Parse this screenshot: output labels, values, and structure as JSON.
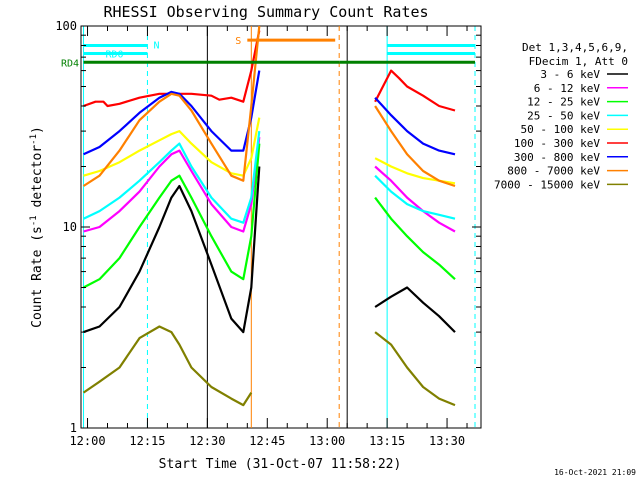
{
  "chart_data": {
    "type": "line",
    "title": "RHESSI Observing Summary Count Rates",
    "xlabel": "Start Time (31-Oct-07 11:58:22)",
    "ylabel": "Count Rate (s^-1 detector^-1)",
    "ylabel_parts": [
      "Count Rate (s",
      "-1",
      " detector",
      "-1",
      ")"
    ],
    "yscale": "log",
    "ylim": [
      1,
      100
    ],
    "xlim": [
      "11:58:22",
      "13:38:30"
    ],
    "x_ticks": [
      "12:00",
      "12:15",
      "12:30",
      "12:45",
      "13:00",
      "13:15",
      "13:30"
    ],
    "y_ticks": [
      "1",
      "10",
      "100"
    ],
    "legend_placement": "right",
    "legend_header": [
      "Det 1,3,4,5,6,9,",
      "FDecim 1, Att 0"
    ],
    "footer_date": "16-Oct-2021 21:09",
    "grid": false,
    "series": [
      {
        "name": "3 - 6 keV",
        "color": "#000000",
        "x": [
          "11:59",
          "12:03",
          "12:08",
          "12:13",
          "12:18",
          "12:21",
          "12:23",
          "12:26",
          "12:31",
          "12:36",
          "12:39",
          "12:41",
          "12:43",
          "13:12",
          "13:16",
          "13:20",
          "13:24",
          "13:28",
          "13:32"
        ],
        "y": [
          3.0,
          3.2,
          4.0,
          6.0,
          10.0,
          14.0,
          16.0,
          12.0,
          6.5,
          3.5,
          3.0,
          5.0,
          20.0,
          4.0,
          4.5,
          5.0,
          4.2,
          3.6,
          3.0
        ]
      },
      {
        "name": "6 - 12 keV",
        "color": "#ff00ff",
        "x": [
          "11:59",
          "12:03",
          "12:08",
          "12:13",
          "12:18",
          "12:21",
          "12:23",
          "12:26",
          "12:31",
          "12:36",
          "12:39",
          "12:41",
          "12:43",
          "13:12",
          "13:16",
          "13:20",
          "13:24",
          "13:28",
          "13:32"
        ],
        "y": [
          9.5,
          10.0,
          12.0,
          15.0,
          20.0,
          23.0,
          24.0,
          19.0,
          13.0,
          10.0,
          9.5,
          13.0,
          28.0,
          20.0,
          17.0,
          14.0,
          12.0,
          10.5,
          9.5
        ]
      },
      {
        "name": "12 - 25 keV",
        "color": "#00ff00",
        "x": [
          "11:59",
          "12:03",
          "12:08",
          "12:13",
          "12:18",
          "12:21",
          "12:23",
          "12:26",
          "12:31",
          "12:36",
          "12:39",
          "12:41",
          "12:43",
          "13:12",
          "13:16",
          "13:20",
          "13:24",
          "13:28",
          "13:32"
        ],
        "y": [
          5.0,
          5.5,
          7.0,
          10.0,
          14.0,
          17.0,
          18.0,
          14.0,
          9.0,
          6.0,
          5.5,
          9.0,
          26.0,
          14.0,
          11.0,
          9.0,
          7.5,
          6.5,
          5.5
        ]
      },
      {
        "name": "25 - 50 keV",
        "color": "#00ffff",
        "x": [
          "11:59",
          "12:03",
          "12:08",
          "12:13",
          "12:18",
          "12:21",
          "12:23",
          "12:26",
          "12:31",
          "12:36",
          "12:39",
          "12:41",
          "12:43",
          "13:12",
          "13:16",
          "13:20",
          "13:24",
          "13:28",
          "13:32"
        ],
        "y": [
          11.0,
          12.0,
          14.0,
          17.0,
          21.0,
          24.0,
          26.0,
          20.0,
          14.0,
          11.0,
          10.5,
          14.0,
          30.0,
          18.0,
          15.0,
          13.0,
          12.0,
          11.5,
          11.0
        ]
      },
      {
        "name": "50 - 100 keV",
        "color": "#ffff00",
        "x": [
          "11:59",
          "12:03",
          "12:08",
          "12:13",
          "12:18",
          "12:21",
          "12:23",
          "12:26",
          "12:31",
          "12:36",
          "12:39",
          "12:41",
          "12:43",
          "13:12",
          "13:16",
          "13:20",
          "13:24",
          "13:28",
          "13:32"
        ],
        "y": [
          18.0,
          19.0,
          21.0,
          24.0,
          27.0,
          29.0,
          30.0,
          26.0,
          21.0,
          18.5,
          18.0,
          22.0,
          35.0,
          22.0,
          20.0,
          18.5,
          17.5,
          17.0,
          16.5
        ]
      },
      {
        "name": "100 - 300 keV",
        "color": "#ff0000",
        "x": [
          "11:59",
          "12:02",
          "12:04",
          "12:05",
          "12:08",
          "12:13",
          "12:18",
          "12:21",
          "12:23",
          "12:26",
          "12:31",
          "12:33",
          "12:36",
          "12:39",
          "12:41",
          "12:43",
          "13:12",
          "13:16",
          "13:18",
          "13:20",
          "13:24",
          "13:28",
          "13:32"
        ],
        "y": [
          40.0,
          42.0,
          42.0,
          40.0,
          41.0,
          44.0,
          46.0,
          46.0,
          46.0,
          46.0,
          45.0,
          43.0,
          44.0,
          42.0,
          60.0,
          95.0,
          42.0,
          60.0,
          55.0,
          50.0,
          45.0,
          40.0,
          38.0
        ]
      },
      {
        "name": "300 - 800 keV",
        "color": "#0000ff",
        "x": [
          "11:59",
          "12:03",
          "12:08",
          "12:13",
          "12:18",
          "12:21",
          "12:23",
          "12:26",
          "12:31",
          "12:36",
          "12:39",
          "12:41",
          "12:43",
          "13:12",
          "13:16",
          "13:20",
          "13:24",
          "13:28",
          "13:32"
        ],
        "y": [
          23.0,
          25.0,
          30.0,
          37.0,
          44.0,
          47.0,
          46.0,
          40.0,
          30.0,
          24.0,
          24.0,
          35.0,
          60.0,
          44.0,
          36.0,
          30.0,
          26.0,
          24.0,
          23.0
        ]
      },
      {
        "name": "800 - 7000 keV",
        "color": "#ff8000",
        "x": [
          "11:59",
          "12:03",
          "12:08",
          "12:13",
          "12:18",
          "12:21",
          "12:23",
          "12:26",
          "12:31",
          "12:36",
          "12:39",
          "12:41",
          "12:43",
          "13:12",
          "13:16",
          "13:20",
          "13:24",
          "13:28",
          "13:32"
        ],
        "y": [
          16.0,
          18.0,
          24.0,
          34.0,
          42.0,
          46.0,
          45.0,
          38.0,
          26.0,
          18.0,
          17.0,
          40.0,
          100.0,
          40.0,
          30.0,
          23.0,
          19.0,
          17.0,
          16.0
        ]
      },
      {
        "name": "7000 - 15000 keV",
        "color": "#808000",
        "x": [
          "11:59",
          "12:03",
          "12:08",
          "12:13",
          "12:18",
          "12:21",
          "12:23",
          "12:26",
          "12:31",
          "12:36",
          "12:39",
          "12:41",
          "13:12",
          "13:16",
          "13:20",
          "13:24",
          "13:28",
          "13:32"
        ],
        "y": [
          1.5,
          1.7,
          2.0,
          2.8,
          3.2,
          3.0,
          2.6,
          2.0,
          1.6,
          1.4,
          1.3,
          1.5,
          3.0,
          2.6,
          2.0,
          1.6,
          1.4,
          1.3
        ]
      }
    ],
    "flags": [
      {
        "label": "N",
        "color": "#00ffff",
        "y": 80,
        "segments": [
          [
            "11:59",
            "12:15"
          ],
          [
            "13:15",
            "13:37"
          ]
        ]
      },
      {
        "label": "RD0",
        "color": "#00ffff",
        "y": 73,
        "segments": [
          [
            "11:59",
            "12:15"
          ],
          [
            "13:15",
            "13:37"
          ]
        ]
      },
      {
        "label": "RD4",
        "color": "#008000",
        "y": 66,
        "segments": [
          [
            "11:59",
            "12:30"
          ],
          [
            "12:30",
            "13:03"
          ],
          [
            "13:03",
            "13:37"
          ]
        ]
      },
      {
        "label": "S",
        "color": "#ff8000",
        "y": 85,
        "segments": [
          [
            "12:40",
            "13:02"
          ]
        ]
      }
    ],
    "vlines": [
      {
        "time": "11:59",
        "color": "#00ffff",
        "style": "solid"
      },
      {
        "time": "12:15",
        "color": "#00ffff",
        "style": "dashed"
      },
      {
        "time": "12:30",
        "color": "#000000",
        "style": "solid"
      },
      {
        "time": "12:41",
        "color": "#ff8000",
        "style": "solid"
      },
      {
        "time": "13:03",
        "color": "#ff8000",
        "style": "dashed"
      },
      {
        "time": "13:05",
        "color": "#000000",
        "style": "solid"
      },
      {
        "time": "13:15",
        "color": "#00ffff",
        "style": "solid"
      },
      {
        "time": "13:37",
        "color": "#00ffff",
        "style": "dashed"
      }
    ],
    "gaps": [
      [
        "12:44",
        "13:09"
      ]
    ]
  }
}
